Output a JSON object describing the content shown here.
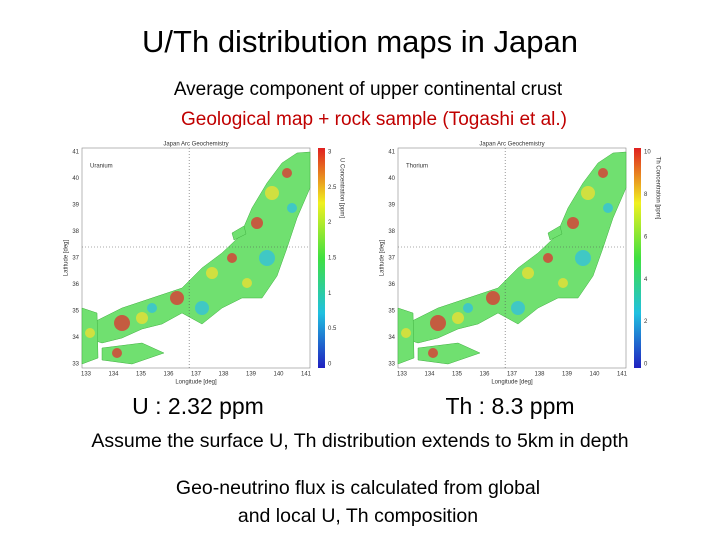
{
  "title": "U/Th distribution maps in Japan",
  "subtitle": [
    "Average component of upper continental crust",
    "Geological map + rock sample (Togashi et al.)"
  ],
  "maps": [
    {
      "header": "Japan Arc Geochemistry",
      "element": "Uranium",
      "y_label": "Latitude [deg]",
      "x_label": "Longitude [deg]",
      "colorbar_label": "U Concentration [ppm]",
      "lat_ticks": [
        "41",
        "40",
        "39",
        "38",
        "37",
        "36",
        "35",
        "34",
        "33"
      ],
      "lon_ticks": [
        "133",
        "134",
        "135",
        "136",
        "137",
        "138",
        "139",
        "140",
        "141"
      ],
      "colorbar_ticks": [
        "3",
        "2.5",
        "2",
        "1.5",
        "1",
        "0.5",
        "0"
      ],
      "caption": "U : 2.32 ppm"
    },
    {
      "header": "Japan Arc Geochemistry",
      "element": "Thorium",
      "y_label": "Latitude [deg]",
      "x_label": "Longitude [deg]",
      "colorbar_label": "Th Concentration [ppm]",
      "lat_ticks": [
        "41",
        "40",
        "39",
        "38",
        "37",
        "36",
        "35",
        "34",
        "33"
      ],
      "lon_ticks": [
        "133",
        "134",
        "135",
        "136",
        "137",
        "138",
        "139",
        "140",
        "141"
      ],
      "colorbar_ticks": [
        "10",
        "8",
        "6",
        "4",
        "2",
        "0"
      ],
      "caption": "Th : 8.3 ppm"
    }
  ],
  "note": "Assume the surface U, Th distribution extends to 5km in depth",
  "conclusion": [
    "Geo-neutrino flux is calculated from global",
    "and local U, Th composition"
  ]
}
